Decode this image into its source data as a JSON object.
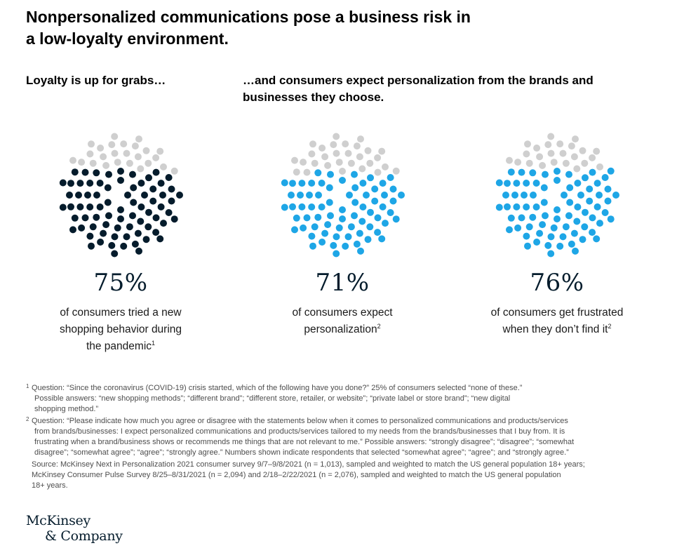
{
  "title": "Nonpersonalized communications pose a business risk in a low-loyalty environment.",
  "title_lines": [
    "Nonpersonalized communications pose a business risk in",
    "a low-loyalty environment."
  ],
  "subheads": {
    "left": "Loyalty is up for grabs…",
    "right_lines": [
      "…and consumers expect personalization from the brands and",
      "businesses they choose."
    ]
  },
  "colors": {
    "filled_dark": "#051c2c",
    "filled_blue": "#1ea6e6",
    "remainder": "#cfcfcf",
    "text": "#051c2c"
  },
  "chart_data": [
    {
      "type": "dot-matrix",
      "value_percent": 75,
      "value_label": "75%",
      "description_lines": [
        "of consumers tried a new",
        "shopping behavior during",
        "the pandemic"
      ],
      "footnote_ref": "1",
      "color": "#051c2c"
    },
    {
      "type": "dot-matrix",
      "value_percent": 71,
      "value_label": "71%",
      "description_lines": [
        "of consumers expect",
        "personalization"
      ],
      "footnote_ref": "2",
      "color": "#1ea6e6"
    },
    {
      "type": "dot-matrix",
      "value_percent": 76,
      "value_label": "76%",
      "description_lines": [
        "of consumers get frustrated",
        "when they don’t find it"
      ],
      "footnote_ref": "2",
      "color": "#1ea6e6"
    }
  ],
  "footnotes": [
    {
      "num": "1",
      "lines": [
        "Question: “Since the coronavirus (COVID-19) crisis started, which of the following have you done?” 25% of consumers selected “none of these.”",
        "Possible answers: “new shopping methods”; “different brand”; “different store, retailer, or website”; “private label or store brand”; “new digital",
        "shopping method.”"
      ]
    },
    {
      "num": "2",
      "lines": [
        "Question: “Please indicate how much you agree or disagree with the statements below when it comes to personalized communications and products/services",
        "from brands/businesses: I expect personalized communications and products/services tailored to my needs from the brands/businesses that I buy from. It is",
        "frustrating when a brand/business shows or recommends me things that are not relevant to me.” Possible answers: “strongly disagree”; “disagree”; “somewhat",
        "disagree”; “somewhat agree”; “agree”; “strongly agree.” Numbers shown indicate respondents that selected “somewhat agree”; “agree”; and “strongly agree.”"
      ]
    }
  ],
  "source_lines": [
    "Source: McKinsey Next in Personalization 2021 consumer survey 9/7–9/8/2021 (n = 1,013), sampled and weighted to match the US general population 18+ years;",
    "McKinsey Consumer Pulse Survey 8/25–8/31/2021 (n = 2,094) and 2/18–2/22/2021 (n = 2,076), sampled and weighted to match the US general population",
    "18+ years."
  ],
  "logo_lines": [
    "McKinsey",
    "& Company"
  ]
}
